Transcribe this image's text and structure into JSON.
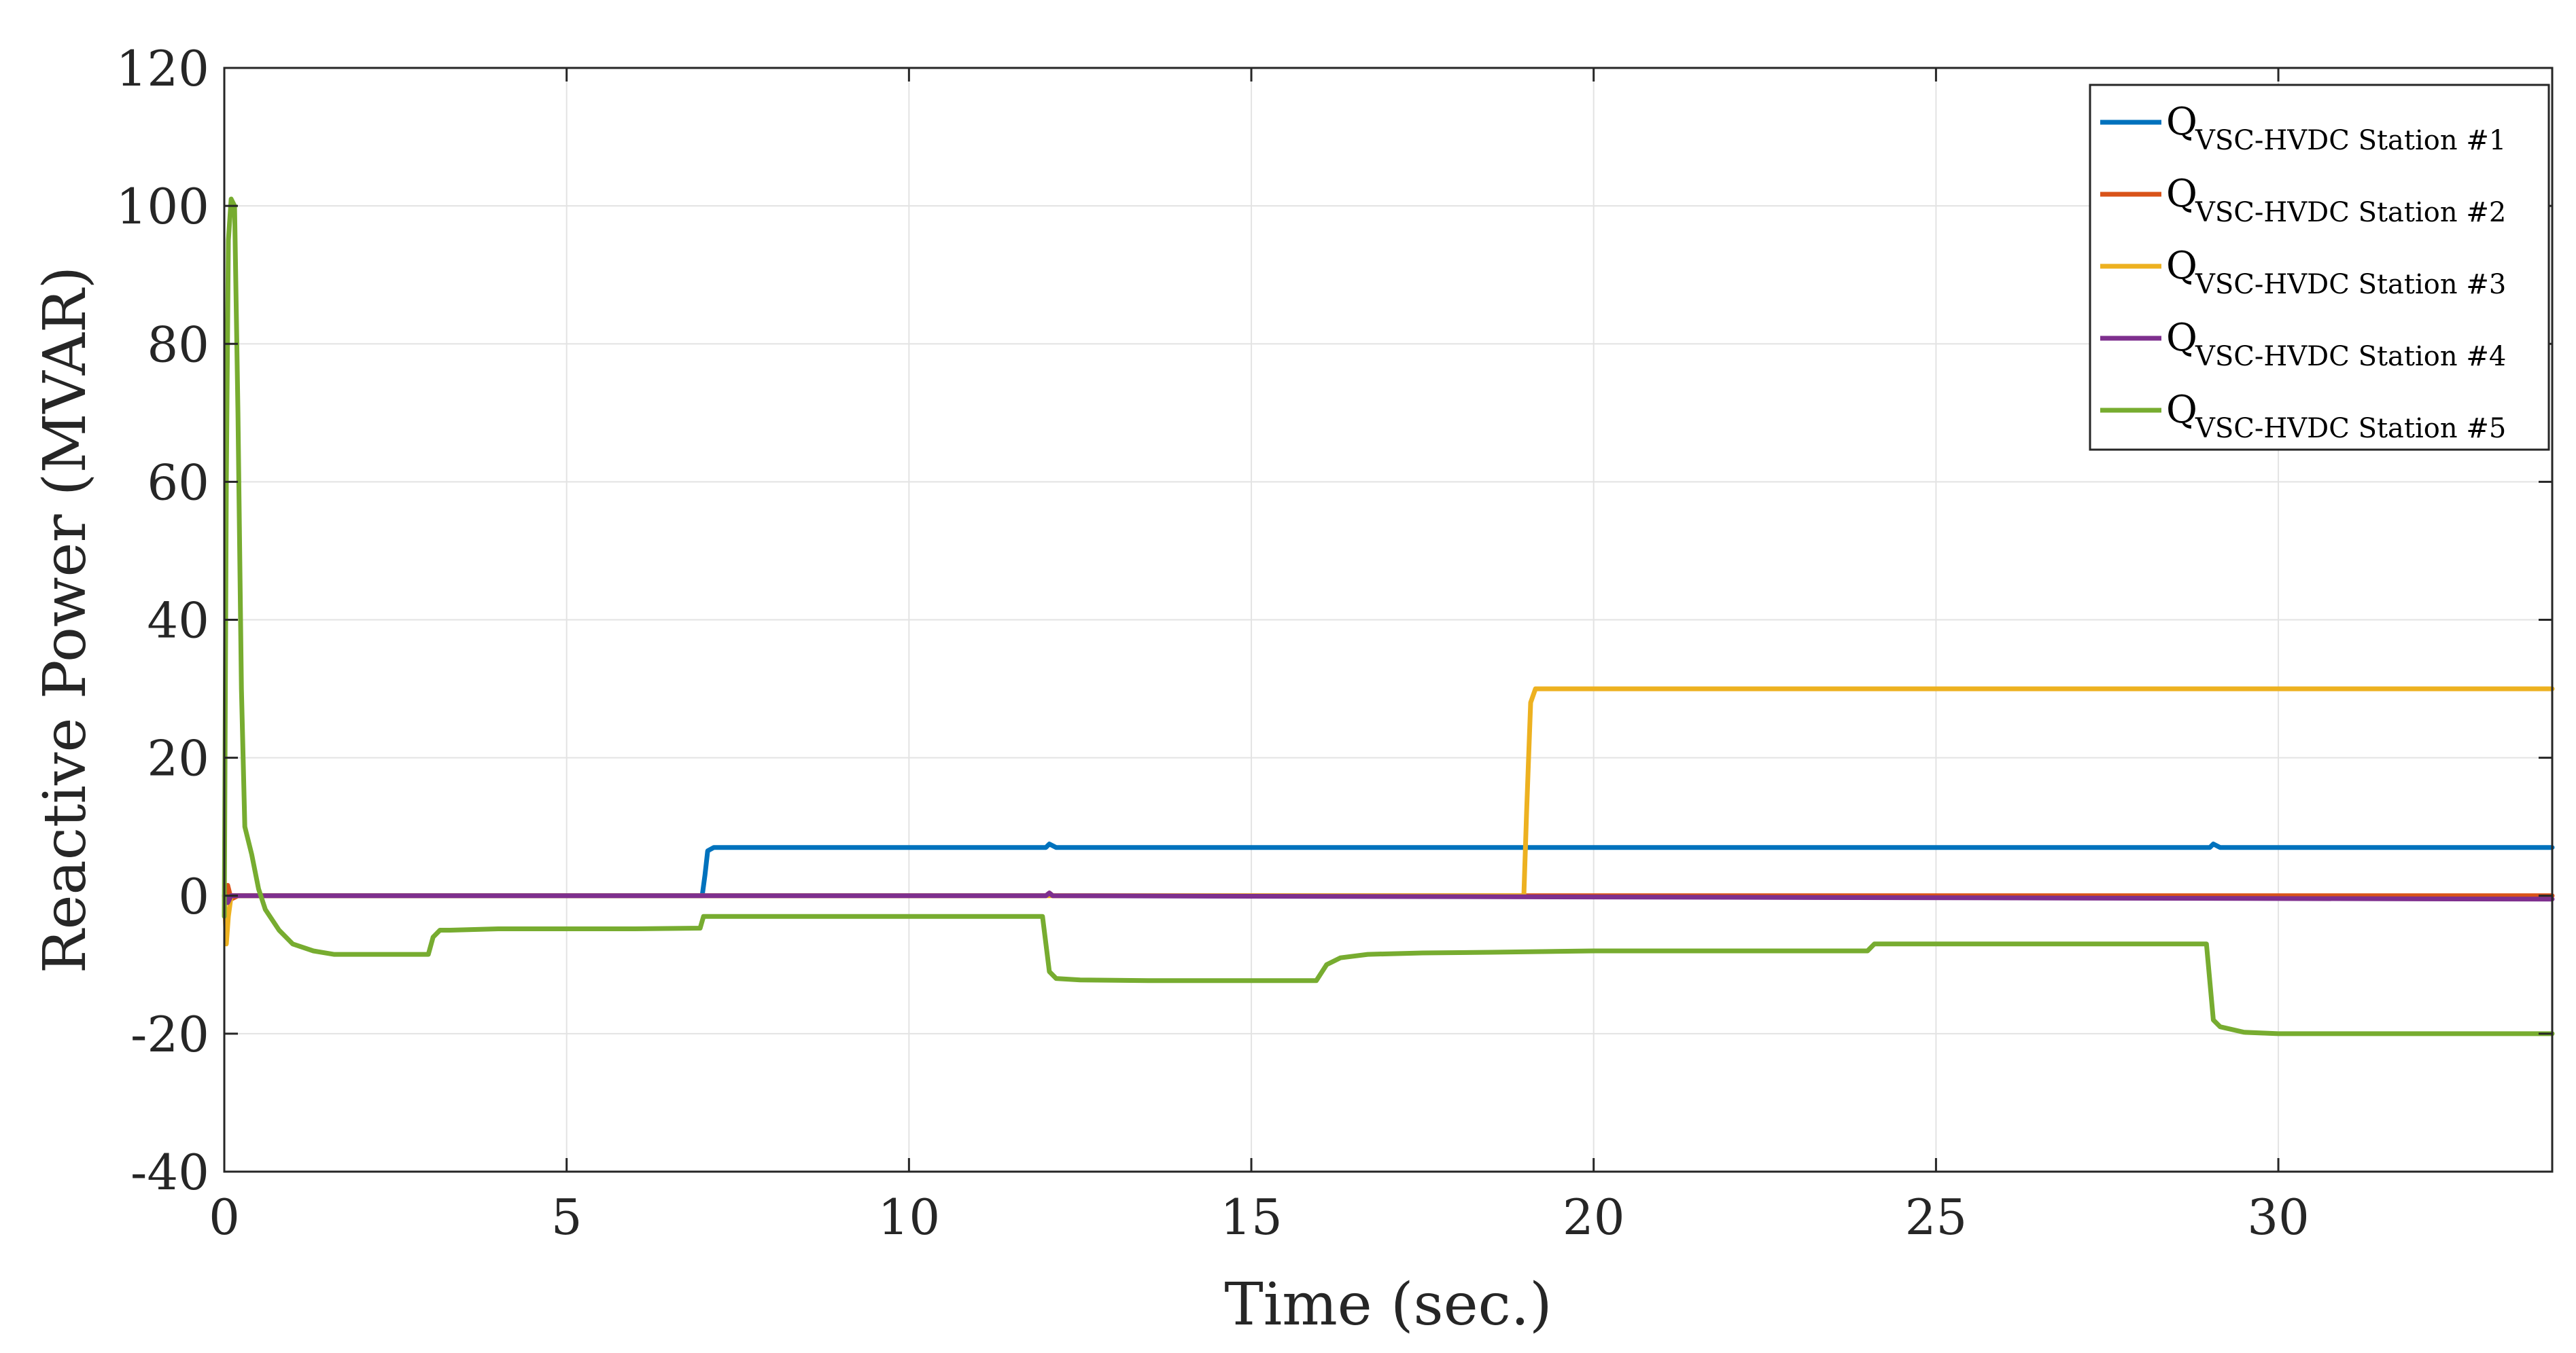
{
  "chart_data": {
    "type": "line",
    "xlabel": "Time (sec.)",
    "ylabel": "Reactive Power (MVAR)",
    "xlim": [
      0,
      34
    ],
    "ylim": [
      -40,
      120
    ],
    "xticks": [
      0,
      5,
      10,
      15,
      20,
      25,
      30
    ],
    "xtick_labels": [
      "0",
      "5",
      "10",
      "15",
      "20",
      "25",
      "30"
    ],
    "yticks": [
      -40,
      -20,
      0,
      20,
      40,
      60,
      80,
      100,
      120
    ],
    "ytick_labels": [
      "-40",
      "-20",
      "0",
      "20",
      "40",
      "60",
      "80",
      "100",
      "120"
    ],
    "grid": true,
    "legend_position": "top-right",
    "series": [
      {
        "name_main": "Q",
        "name_sub": "VSC-HVDC Station #1",
        "color": "#0072BD",
        "x": [
          0,
          6.98,
          7.02,
          7.06,
          7.15,
          12.0,
          12.05,
          12.15,
          29.0,
          29.05,
          29.15,
          34
        ],
        "y": [
          0,
          0,
          3,
          6.5,
          7,
          7,
          7.5,
          7,
          7,
          7.5,
          7,
          7
        ]
      },
      {
        "name_main": "Q",
        "name_sub": "VSC-HVDC Station #2",
        "color": "#D95319",
        "x": [
          0,
          0.05,
          0.1,
          0.2,
          12.0,
          12.05,
          12.1,
          34
        ],
        "y": [
          0,
          1.5,
          -0.5,
          0,
          0,
          0.4,
          0,
          0
        ]
      },
      {
        "name_main": "Q",
        "name_sub": "VSC-HVDC Station #3",
        "color": "#EDB120",
        "x": [
          0,
          0.03,
          0.06,
          0.1,
          0.2,
          18.98,
          19.02,
          19.08,
          19.15,
          19.3,
          34
        ],
        "y": [
          0,
          -7,
          -3,
          0,
          0,
          0,
          12,
          28,
          30,
          30,
          30
        ]
      },
      {
        "name_main": "Q",
        "name_sub": "VSC-HVDC Station #4",
        "color": "#7E2F8E",
        "x": [
          0,
          0.05,
          0.1,
          0.2,
          12.0,
          12.05,
          12.1,
          34
        ],
        "y": [
          0,
          -1,
          0,
          0,
          0,
          0.4,
          0,
          -0.5
        ]
      },
      {
        "name_main": "Q",
        "name_sub": "VSC-HVDC Station #5",
        "color": "#77AC30",
        "x": [
          0,
          0.03,
          0.06,
          0.1,
          0.15,
          0.2,
          0.25,
          0.3,
          0.4,
          0.5,
          0.6,
          0.8,
          1.0,
          1.3,
          1.6,
          2.0,
          2.5,
          2.98,
          3.05,
          3.15,
          3.3,
          4.0,
          5.0,
          6.0,
          6.95,
          7.0,
          7.1,
          7.3,
          8.0,
          9.0,
          10.0,
          11.0,
          11.95,
          12.05,
          12.15,
          12.5,
          13.5,
          14.5,
          15.5,
          15.95,
          16.1,
          16.3,
          16.7,
          17.5,
          18.5,
          20.0,
          22.0,
          24.0,
          24.1,
          25.0,
          27.0,
          28.95,
          29.05,
          29.15,
          29.5,
          30.0,
          31.0,
          32.5,
          34.0
        ],
        "y": [
          -3,
          60,
          95,
          101,
          100,
          70,
          30,
          10,
          6,
          1,
          -2,
          -5,
          -7,
          -8,
          -8.5,
          -8.5,
          -8.5,
          -8.5,
          -6,
          -5,
          -5,
          -4.8,
          -4.8,
          -4.8,
          -4.7,
          -3,
          -3,
          -3,
          -3,
          -3,
          -3,
          -3,
          -3,
          -11,
          -12,
          -12.2,
          -12.3,
          -12.3,
          -12.3,
          -12.3,
          -10,
          -9,
          -8.5,
          -8.3,
          -8.2,
          -8,
          -8,
          -8,
          -7,
          -7,
          -7,
          -7,
          -18,
          -19,
          -19.8,
          -20,
          -20,
          -20,
          -20
        ]
      }
    ]
  }
}
